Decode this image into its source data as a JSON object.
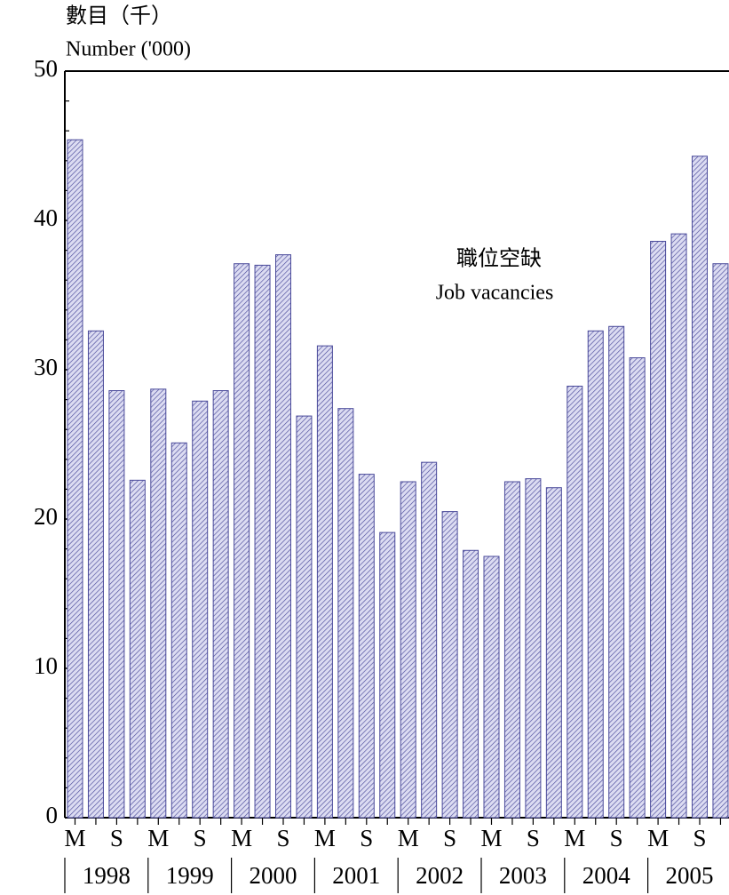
{
  "chart_data": {
    "type": "bar",
    "title": "數目（千）",
    "subtitle": "Number ('000)",
    "annotation": [
      "職位空缺",
      "Job vacancies"
    ],
    "categories": [
      "M",
      null,
      "S",
      null,
      "M",
      null,
      "S",
      null,
      "M",
      null,
      "S",
      null,
      "M",
      null,
      "S",
      null,
      "M",
      null,
      "S",
      null,
      "M",
      null,
      "S",
      null,
      "M",
      null,
      "S",
      null,
      "M",
      null,
      "S",
      null
    ],
    "years": [
      "1998",
      "1999",
      "2000",
      "2001",
      "2002",
      "2003",
      "2004",
      "2005"
    ],
    "values": [
      45.4,
      32.6,
      28.6,
      22.6,
      28.7,
      25.1,
      27.9,
      28.6,
      37.1,
      37.0,
      37.7,
      26.9,
      31.6,
      27.4,
      23.0,
      19.1,
      22.5,
      23.8,
      20.5,
      17.9,
      17.5,
      22.5,
      22.7,
      22.1,
      28.9,
      32.6,
      32.9,
      30.8,
      38.6,
      39.1,
      44.3,
      37.1
    ],
    "color": "#dcdcf2",
    "hatch_color": "#4a4a9a",
    "ylim": [
      0,
      50
    ],
    "yticks": [
      0,
      10,
      20,
      30,
      40,
      50
    ],
    "y_minor_ticks": [
      2,
      4,
      6,
      8,
      12,
      14,
      16,
      18,
      22,
      24,
      26,
      28,
      32,
      34,
      36,
      38,
      42,
      44,
      46,
      48
    ]
  }
}
